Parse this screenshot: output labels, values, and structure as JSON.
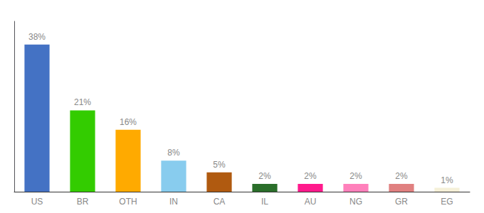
{
  "chart_data": {
    "type": "bar",
    "categories": [
      "US",
      "BR",
      "OTH",
      "IN",
      "CA",
      "IL",
      "AU",
      "NG",
      "GR",
      "EG"
    ],
    "values": [
      38,
      21,
      16,
      8,
      5,
      2,
      2,
      2,
      2,
      1
    ],
    "value_labels": [
      "38%",
      "21%",
      "16%",
      "8%",
      "5%",
      "2%",
      "2%",
      "2%",
      "2%",
      "1%"
    ],
    "colors": [
      "#4472c4",
      "#33cc00",
      "#ffaa00",
      "#88ccee",
      "#b05a10",
      "#2a6e2a",
      "#ff1a8c",
      "#ff80bb",
      "#e08080",
      "#f5f0d8"
    ],
    "ylim": [
      0,
      44
    ],
    "yticks": [],
    "grid": false,
    "data_labels": true,
    "tick_labels": "x"
  }
}
